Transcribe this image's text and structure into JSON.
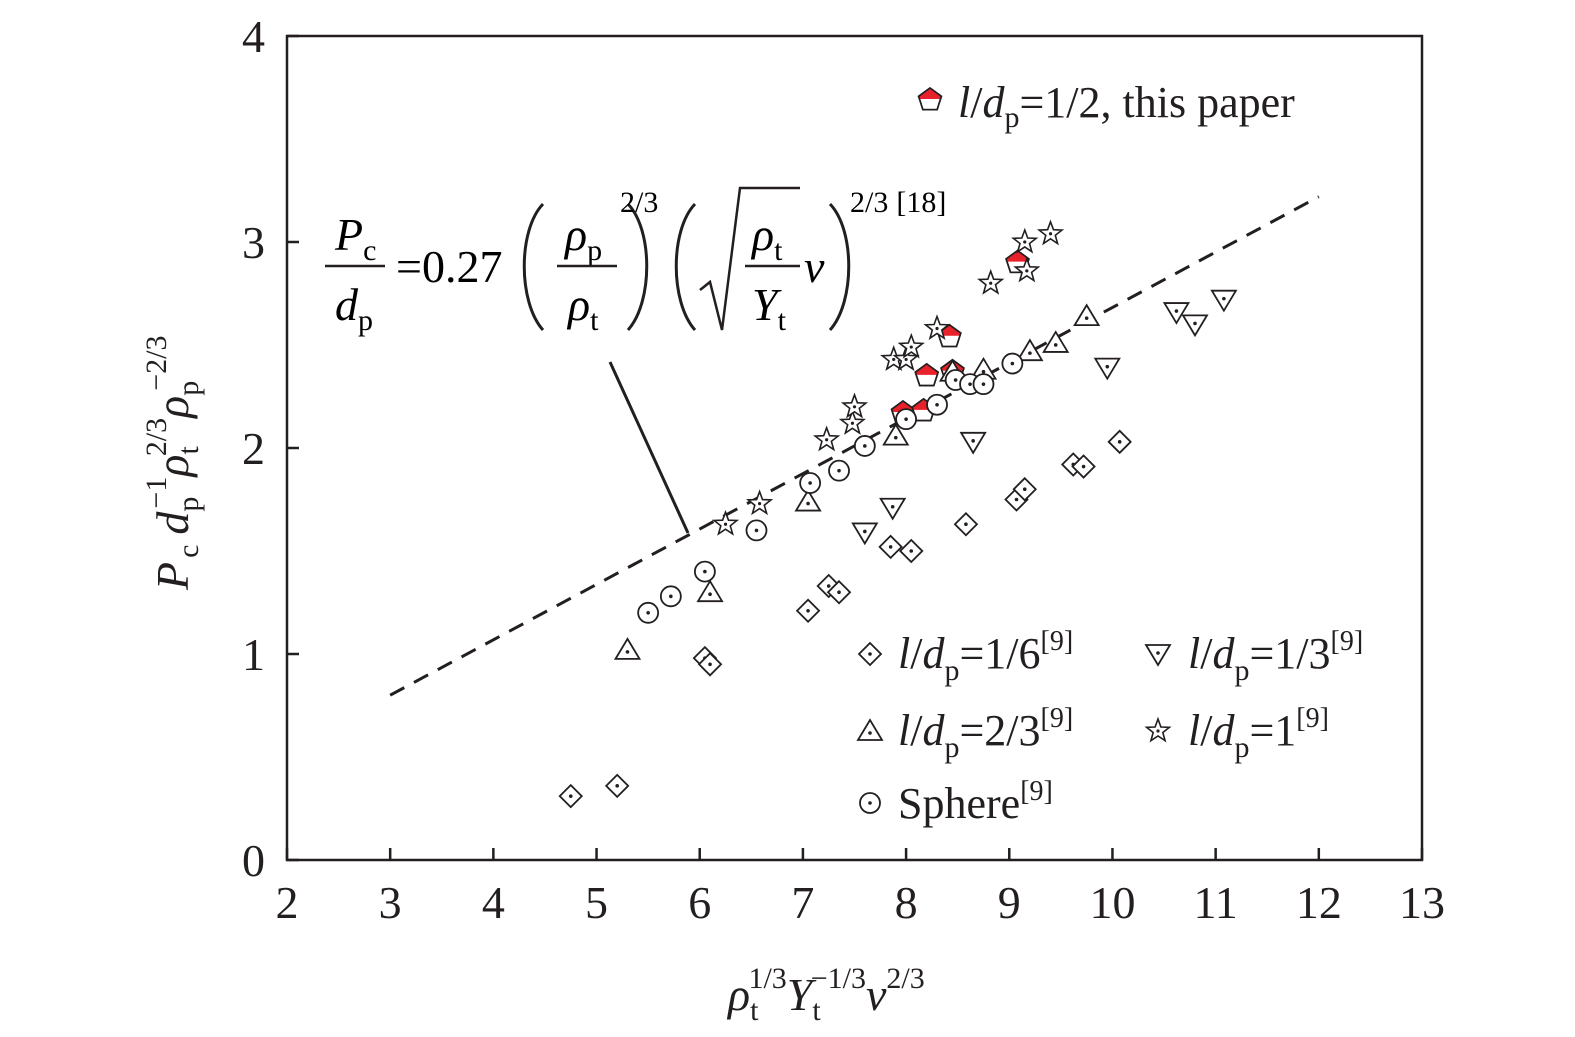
{
  "chart_data": {
    "type": "scatter",
    "xlim": [
      2,
      13
    ],
    "ylim": [
      0,
      4
    ],
    "x_ticks": [
      "2",
      "3",
      "4",
      "5",
      "6",
      "7",
      "8",
      "9",
      "10",
      "11",
      "12",
      "13"
    ],
    "y_ticks": [
      "0",
      "1",
      "2",
      "3",
      "4"
    ],
    "xlabel": {
      "rho": "ρ",
      "t": "t",
      "exp1": "1/3",
      "Y": "Y",
      "exp2": "−1/3",
      "v": "v",
      "exp3": "2/3"
    },
    "ylabel": {
      "P": "P",
      "c": "c",
      "d": "d",
      "p": "p",
      "exp1": "−1",
      "rho": "ρ",
      "t": "t",
      "exp2": "2/3",
      "exp3": "−2/3"
    },
    "grid": false,
    "legend": {
      "top": {
        "l": "l",
        "slash": "/",
        "d": "d",
        "p": "p",
        "rest": "=1/2, this paper"
      },
      "bottom": [
        {
          "marker": "diamond",
          "l": "l",
          "slash": "/",
          "d": "d",
          "p": "p",
          "rest": "=1/6",
          "ref": "[9]"
        },
        {
          "marker": "tri_down",
          "l": "l",
          "slash": "/",
          "d": "d",
          "p": "p",
          "rest": "=1/3",
          "ref": "[9]"
        },
        {
          "marker": "tri_up",
          "l": "l",
          "slash": "/",
          "d": "d",
          "p": "p",
          "rest": "=2/3",
          "ref": "[9]"
        },
        {
          "marker": "star",
          "l": "l",
          "slash": "/",
          "d": "d",
          "p": "p",
          "rest": "=1",
          "ref": "[9]"
        },
        {
          "marker": "circle",
          "text": "Sphere",
          "ref": "[9]"
        }
      ]
    },
    "equation": {
      "P": "P",
      "c": "c",
      "d": "d",
      "p": "p",
      "coef": "=0.27",
      "rho": "ρ",
      "t": "t",
      "Y": "Y",
      "v": "v",
      "exp1": "2/3",
      "exp2": "2/3",
      "ref": "[18]"
    },
    "fit_line": {
      "x": [
        3,
        12
      ],
      "y": [
        0.8,
        3.22
      ]
    },
    "series": [
      {
        "marker": "pentagon",
        "points": [
          [
            7.97,
            2.17
          ],
          [
            8.17,
            2.18
          ],
          [
            8.2,
            2.35
          ],
          [
            8.45,
            2.37
          ],
          [
            8.42,
            2.54
          ],
          [
            9.08,
            2.9
          ]
        ]
      },
      {
        "marker": "diamond",
        "points": [
          [
            4.75,
            0.31
          ],
          [
            5.2,
            0.36
          ],
          [
            6.05,
            0.98
          ],
          [
            6.1,
            0.95
          ],
          [
            7.05,
            1.21
          ],
          [
            7.25,
            1.33
          ],
          [
            7.35,
            1.3
          ],
          [
            7.85,
            1.52
          ],
          [
            8.05,
            1.5
          ],
          [
            8.58,
            1.63
          ],
          [
            9.07,
            1.75
          ],
          [
            9.15,
            1.8
          ],
          [
            9.62,
            1.92
          ],
          [
            9.72,
            1.91
          ],
          [
            10.07,
            2.03
          ]
        ]
      },
      {
        "marker": "tri_down",
        "points": [
          [
            7.6,
            1.59
          ],
          [
            7.87,
            1.71
          ],
          [
            8.65,
            2.03
          ],
          [
            9.95,
            2.39
          ],
          [
            10.62,
            2.66
          ],
          [
            10.8,
            2.6
          ],
          [
            11.08,
            2.72
          ]
        ]
      },
      {
        "marker": "tri_up",
        "points": [
          [
            5.3,
            1.02
          ],
          [
            6.1,
            1.3
          ],
          [
            7.05,
            1.74
          ],
          [
            7.9,
            2.06
          ],
          [
            8.45,
            2.37
          ],
          [
            8.75,
            2.38
          ],
          [
            9.2,
            2.47
          ],
          [
            9.45,
            2.51
          ],
          [
            9.75,
            2.64
          ]
        ]
      },
      {
        "marker": "star",
        "points": [
          [
            6.25,
            1.63
          ],
          [
            6.58,
            1.73
          ],
          [
            7.23,
            2.04
          ],
          [
            7.48,
            2.12
          ],
          [
            7.5,
            2.2
          ],
          [
            7.88,
            2.43
          ],
          [
            8.0,
            2.43
          ],
          [
            8.05,
            2.49
          ],
          [
            8.3,
            2.58
          ],
          [
            8.82,
            2.8
          ],
          [
            9.15,
            3.0
          ],
          [
            9.17,
            2.86
          ],
          [
            9.4,
            3.04
          ]
        ]
      },
      {
        "marker": "circle",
        "points": [
          [
            5.5,
            1.2
          ],
          [
            5.72,
            1.28
          ],
          [
            6.05,
            1.4
          ],
          [
            6.55,
            1.6
          ],
          [
            7.07,
            1.83
          ],
          [
            7.35,
            1.89
          ],
          [
            7.6,
            2.01
          ],
          [
            8.0,
            2.14
          ],
          [
            8.3,
            2.21
          ],
          [
            8.48,
            2.33
          ],
          [
            8.62,
            2.31
          ],
          [
            8.75,
            2.31
          ],
          [
            9.03,
            2.41
          ]
        ]
      }
    ]
  }
}
